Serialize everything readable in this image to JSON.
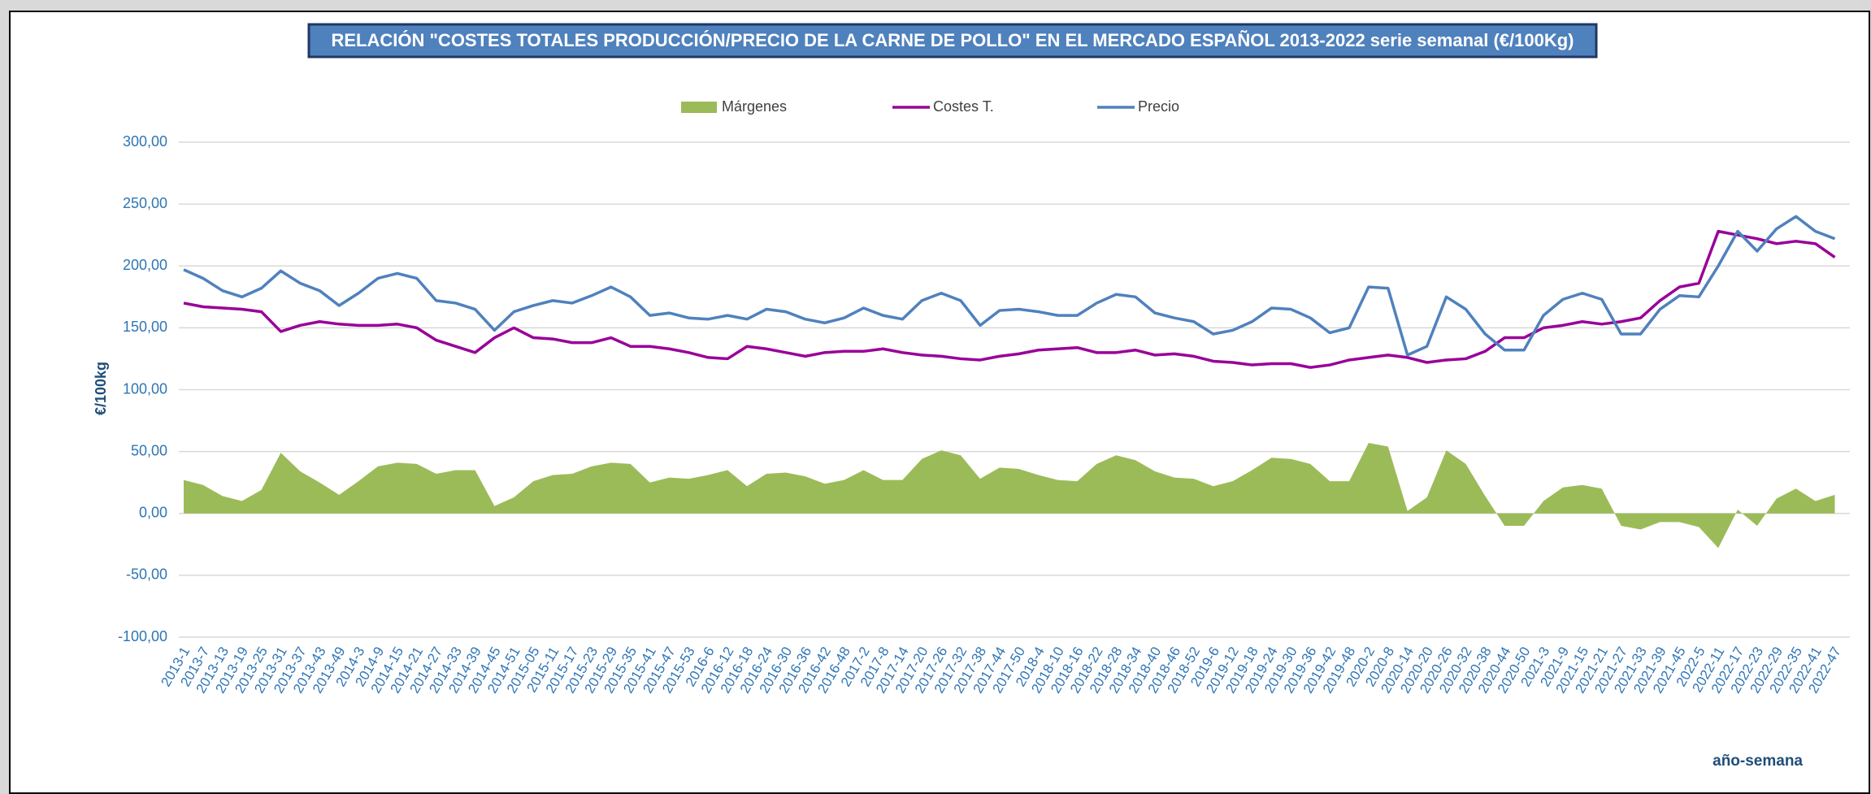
{
  "chart_data": {
    "type": "line",
    "title": "RELACIÓN \"COSTES TOTALES PRODUCCIÓN/PRECIO DE LA CARNE DE POLLO\" EN EL MERCADO ESPAÑOL 2013-2022 serie semanal (€/100Kg)",
    "y_label": "€/100kg",
    "x_label": "año-semana",
    "categories": [
      "2013-1",
      "2013-7",
      "2013-13",
      "2013-19",
      "2013-25",
      "2013-31",
      "2013-37",
      "2013-43",
      "2013-49",
      "2014-3",
      "2014-9",
      "2014-15",
      "2014-21",
      "2014-27",
      "2014-33",
      "2014-39",
      "2014-45",
      "2014-51",
      "2015-05",
      "2015-11",
      "2015-17",
      "2015-23",
      "2015-29",
      "2015-35",
      "2015-41",
      "2015-47",
      "2015-53",
      "2016-6",
      "2016-12",
      "2016-18",
      "2016-24",
      "2016-30",
      "2016-36",
      "2016-42",
      "2016-48",
      "2017-2",
      "2017-8",
      "2017-14",
      "2017-20",
      "2017-26",
      "2017-32",
      "2017-38",
      "2017-44",
      "2017-50",
      "2018-4",
      "2018-10",
      "2018-16",
      "2018-22",
      "2018-28",
      "2018-34",
      "2018-40",
      "2018-46",
      "2018-52",
      "2019-6",
      "2019-12",
      "2019-18",
      "2019-24",
      "2019-30",
      "2019-36",
      "2019-42",
      "2019-48",
      "2020-2",
      "2020-8",
      "2020-14",
      "2020-20",
      "2020-26",
      "2020-32",
      "2020-38",
      "2020-44",
      "2020-50",
      "2021-3",
      "2021-9",
      "2021-15",
      "2021-21",
      "2021-27",
      "2021-33",
      "2021-39",
      "2021-45",
      "2022-5",
      "2022-11",
      "2022-17",
      "2022-23",
      "2022-29",
      "2022-35",
      "2022-41",
      "2022-47"
    ],
    "series": [
      {
        "name": "Márgenes",
        "kind": "area",
        "color": "#9bbb59",
        "values": [
          27,
          23,
          14,
          10,
          19,
          49,
          34,
          25,
          15,
          26,
          38,
          41,
          40,
          32,
          35,
          35,
          6,
          13,
          26,
          31,
          32,
          38,
          41,
          40,
          25,
          29,
          28,
          31,
          35,
          22,
          32,
          33,
          30,
          24,
          27,
          35,
          27,
          27,
          44,
          51,
          47,
          28,
          37,
          36,
          31,
          27,
          26,
          40,
          47,
          43,
          34,
          29,
          28,
          22,
          26,
          35,
          45,
          44,
          40,
          26,
          26,
          57,
          54,
          2,
          13,
          51,
          40,
          14,
          -10,
          -10,
          10,
          21,
          23,
          20,
          -10,
          -13,
          -7,
          -7,
          -11,
          -28,
          3,
          -10,
          12,
          20,
          10,
          15
        ]
      },
      {
        "name": "Costes T.",
        "kind": "line",
        "color": "#990099",
        "values": [
          170,
          167,
          166,
          165,
          163,
          147,
          152,
          155,
          153,
          152,
          152,
          153,
          150,
          140,
          135,
          130,
          142,
          150,
          142,
          141,
          138,
          138,
          142,
          135,
          135,
          133,
          130,
          126,
          125,
          135,
          133,
          130,
          127,
          130,
          131,
          131,
          133,
          130,
          128,
          127,
          125,
          124,
          127,
          129,
          132,
          133,
          134,
          130,
          130,
          132,
          128,
          129,
          127,
          123,
          122,
          120,
          121,
          121,
          118,
          120,
          124,
          126,
          128,
          126,
          122,
          124,
          125,
          131,
          142,
          142,
          150,
          152,
          155,
          153,
          155,
          158,
          172,
          183,
          186,
          228,
          225,
          222,
          218,
          220,
          218,
          207
        ]
      },
      {
        "name": "Precio",
        "kind": "line",
        "color": "#4f81bd",
        "values": [
          197,
          190,
          180,
          175,
          182,
          196,
          186,
          180,
          168,
          178,
          190,
          194,
          190,
          172,
          170,
          165,
          148,
          163,
          168,
          172,
          170,
          176,
          183,
          175,
          160,
          162,
          158,
          157,
          160,
          157,
          165,
          163,
          157,
          154,
          158,
          166,
          160,
          157,
          172,
          178,
          172,
          152,
          164,
          165,
          163,
          160,
          160,
          170,
          177,
          175,
          162,
          158,
          155,
          145,
          148,
          155,
          166,
          165,
          158,
          146,
          150,
          183,
          182,
          128,
          135,
          175,
          165,
          145,
          132,
          132,
          160,
          173,
          178,
          173,
          145,
          145,
          165,
          176,
          175,
          200,
          228,
          212,
          230,
          240,
          228,
          222
        ]
      }
    ],
    "ylim": [
      -100,
      300
    ],
    "yticks": [
      {
        "value": -100,
        "label": "-100,00"
      },
      {
        "value": -50,
        "label": "-50,00"
      },
      {
        "value": 0,
        "label": "0,00"
      },
      {
        "value": 50,
        "label": "50,00"
      },
      {
        "value": 100,
        "label": "100,00"
      },
      {
        "value": 150,
        "label": "150,00"
      },
      {
        "value": 200,
        "label": "200,00"
      },
      {
        "value": 250,
        "label": "250,00"
      },
      {
        "value": 300,
        "label": "300,00"
      }
    ],
    "grid": true
  }
}
